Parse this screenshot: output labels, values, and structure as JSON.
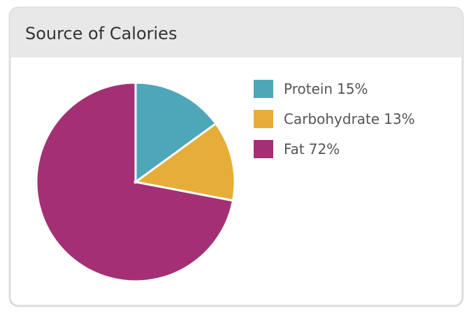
{
  "chart_data": {
    "type": "pie",
    "title": "Source of Calories",
    "categories": [
      "Protein",
      "Carbohydrate",
      "Fat"
    ],
    "values": [
      15,
      13,
      72
    ],
    "value_labels": [
      "15%",
      "13%",
      "72%"
    ],
    "colors": [
      "#4ea7b8",
      "#e6ad38",
      "#a33075"
    ],
    "legend": "right"
  }
}
